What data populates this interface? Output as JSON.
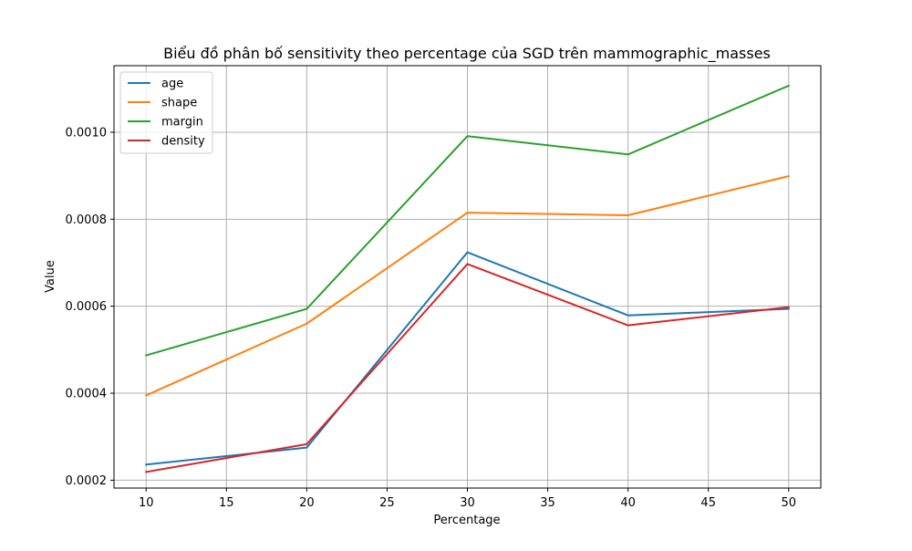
{
  "chart_data": {
    "type": "line",
    "title": "Biểu đồ phân bố sensitivity theo percentage của SGD trên mammographic_masses",
    "xlabel": "Percentage",
    "ylabel": "Value",
    "x": [
      10,
      20,
      30,
      40,
      50
    ],
    "xlim": [
      8,
      52
    ],
    "ylim": [
      0.000182,
      0.001153
    ],
    "xticks": [
      10,
      15,
      20,
      25,
      30,
      35,
      40,
      45,
      50
    ],
    "xtick_labels": [
      "10",
      "15",
      "20",
      "25",
      "30",
      "35",
      "40",
      "45",
      "50"
    ],
    "yticks": [
      0.0002,
      0.0004,
      0.0006,
      0.0008,
      0.001
    ],
    "ytick_labels": [
      "0.0002",
      "0.0004",
      "0.0006",
      "0.0008",
      "0.0010"
    ],
    "grid": true,
    "legend_position": "upper-left",
    "series": [
      {
        "name": "age",
        "color": "#1f77b4",
        "values": [
          0.000236,
          0.000275,
          0.000724,
          0.000579,
          0.000594
        ]
      },
      {
        "name": "shape",
        "color": "#ff7f0e",
        "values": [
          0.000395,
          0.00056,
          0.000815,
          0.000809,
          0.000899
        ]
      },
      {
        "name": "margin",
        "color": "#2ca02c",
        "values": [
          0.000487,
          0.000594,
          0.000991,
          0.000949,
          0.001107
        ]
      },
      {
        "name": "density",
        "color": "#d62728",
        "values": [
          0.000219,
          0.000283,
          0.000697,
          0.000556,
          0.000598
        ]
      }
    ]
  }
}
